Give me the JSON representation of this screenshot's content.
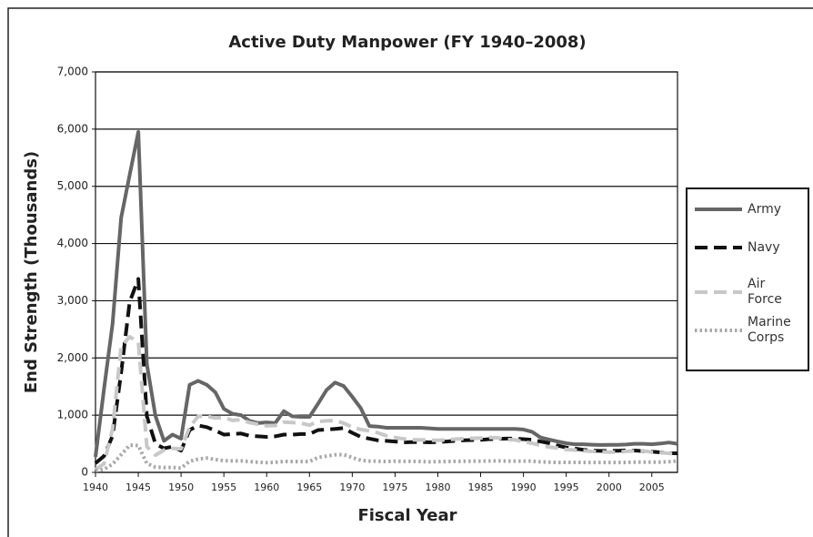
{
  "chart_data": {
    "type": "line",
    "title": "Active Duty Manpower (FY 1940–2008)",
    "x_label": "Fiscal Year",
    "y_label": "End Strength (Thousands)",
    "x": [
      1940,
      1941,
      1942,
      1943,
      1944,
      1945,
      1946,
      1947,
      1948,
      1949,
      1950,
      1951,
      1952,
      1953,
      1954,
      1955,
      1956,
      1957,
      1958,
      1959,
      1960,
      1961,
      1962,
      1963,
      1964,
      1965,
      1966,
      1967,
      1968,
      1969,
      1970,
      1971,
      1972,
      1973,
      1974,
      1975,
      1976,
      1977,
      1978,
      1979,
      1980,
      1981,
      1982,
      1983,
      1984,
      1985,
      1986,
      1987,
      1988,
      1989,
      1990,
      1991,
      1992,
      1993,
      1994,
      1995,
      1996,
      1997,
      1998,
      1999,
      2000,
      2001,
      2002,
      2003,
      2004,
      2005,
      2006,
      2007,
      2008
    ],
    "series": [
      {
        "name": "Army",
        "color": "#666666",
        "style": "solid",
        "values": [
          270,
          1460,
          2600,
          4450,
          5200,
          5950,
          1890,
          990,
          550,
          660,
          590,
          1530,
          1600,
          1530,
          1400,
          1110,
          1025,
          1000,
          900,
          862,
          873,
          860,
          1070,
          980,
          970,
          970,
          1200,
          1440,
          1570,
          1510,
          1320,
          1120,
          810,
          800,
          780,
          780,
          780,
          780,
          780,
          770,
          760,
          760,
          760,
          760,
          760,
          760,
          760,
          760,
          760,
          760,
          750,
          710,
          610,
          572,
          540,
          509,
          491,
          492,
          484,
          479,
          482,
          481,
          487,
          499,
          500,
          492,
          505,
          522,
          500
        ]
      },
      {
        "name": "Navy",
        "color": "#111111",
        "style": "dashed",
        "values": [
          160,
          284,
          640,
          1740,
          2980,
          3380,
          980,
          500,
          420,
          450,
          380,
          740,
          820,
          790,
          730,
          660,
          670,
          680,
          640,
          630,
          620,
          630,
          660,
          660,
          670,
          670,
          740,
          750,
          760,
          775,
          690,
          620,
          590,
          560,
          550,
          540,
          525,
          530,
          530,
          525,
          530,
          540,
          550,
          560,
          565,
          570,
          580,
          585,
          590,
          590,
          580,
          570,
          540,
          510,
          470,
          435,
          415,
          395,
          380,
          375,
          375,
          378,
          383,
          382,
          373,
          362,
          350,
          338,
          332
        ]
      },
      {
        "name": "Air Force",
        "color": "#c8c8c8",
        "style": "dashed",
        "values": [
          50,
          150,
          760,
          2200,
          2370,
          2280,
          450,
          300,
          390,
          420,
          410,
          790,
          980,
          980,
          950,
          960,
          910,
          920,
          870,
          840,
          815,
          820,
          880,
          870,
          860,
          825,
          890,
          900,
          905,
          860,
          790,
          750,
          725,
          690,
          640,
          610,
          585,
          570,
          570,
          560,
          560,
          570,
          580,
          590,
          595,
          600,
          610,
          605,
          575,
          570,
          535,
          510,
          470,
          444,
          426,
          400,
          389,
          377,
          367,
          361,
          355,
          354,
          368,
          375,
          377,
          353,
          349,
          333,
          327
        ]
      },
      {
        "name": "Marine Corps",
        "color": "#a8a8a8",
        "style": "dotted",
        "values": [
          28,
          54,
          143,
          309,
          475,
          470,
          156,
          93,
          85,
          86,
          74,
          193,
          232,
          249,
          224,
          205,
          201,
          201,
          189,
          176,
          171,
          177,
          191,
          190,
          190,
          190,
          261,
          285,
          307,
          310,
          260,
          212,
          198,
          196,
          189,
          196,
          192,
          192,
          191,
          185,
          188,
          191,
          192,
          194,
          196,
          198,
          199,
          200,
          197,
          197,
          197,
          195,
          185,
          178,
          174,
          175,
          175,
          174,
          173,
          173,
          173,
          173,
          174,
          178,
          178,
          180,
          180,
          186,
          199
        ]
      }
    ],
    "xlim": [
      1940,
      2008
    ],
    "xticks": [
      1940,
      1945,
      1950,
      1955,
      1960,
      1965,
      1970,
      1975,
      1980,
      1985,
      1990,
      1995,
      2000,
      2005
    ],
    "ylim": [
      0,
      7000
    ],
    "yticks": [
      0,
      {
        "value": 1000,
        "label": "1,000"
      },
      {
        "value": 2000,
        "label": "2,000"
      },
      {
        "value": 3000,
        "label": "3,000"
      },
      {
        "value": 4000,
        "label": "4,000"
      },
      {
        "value": 5000,
        "label": "5,000"
      },
      {
        "value": 6000,
        "label": "6,000"
      },
      {
        "value": 7000,
        "label": "7,000"
      }
    ],
    "grid": true,
    "legend": "right"
  }
}
